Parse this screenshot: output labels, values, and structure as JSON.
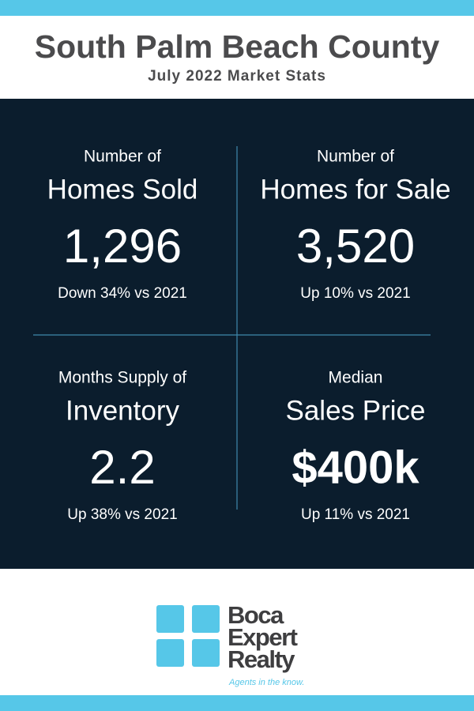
{
  "header": {
    "title": "South Palm Beach County",
    "subtitle": "July 2022 Market Stats"
  },
  "stats": [
    {
      "label_top": "Number of",
      "label_main": "Homes Sold",
      "value": "1,296",
      "change": "Down 34% vs 2021"
    },
    {
      "label_top": "Number of",
      "label_main": "Homes for Sale",
      "value": "3,520",
      "change": "Up 10% vs 2021"
    },
    {
      "label_top": "Months Supply of",
      "label_main": "Inventory",
      "value": "2.2",
      "change": "Up 38% vs 2021"
    },
    {
      "label_top": "Median",
      "label_main": "Sales Price",
      "value": "$400k",
      "change": "Up 11% vs 2021"
    }
  ],
  "logo": {
    "name": [
      "Boca",
      "Expert",
      "Realty"
    ],
    "tagline": "Agents in the know."
  }
}
